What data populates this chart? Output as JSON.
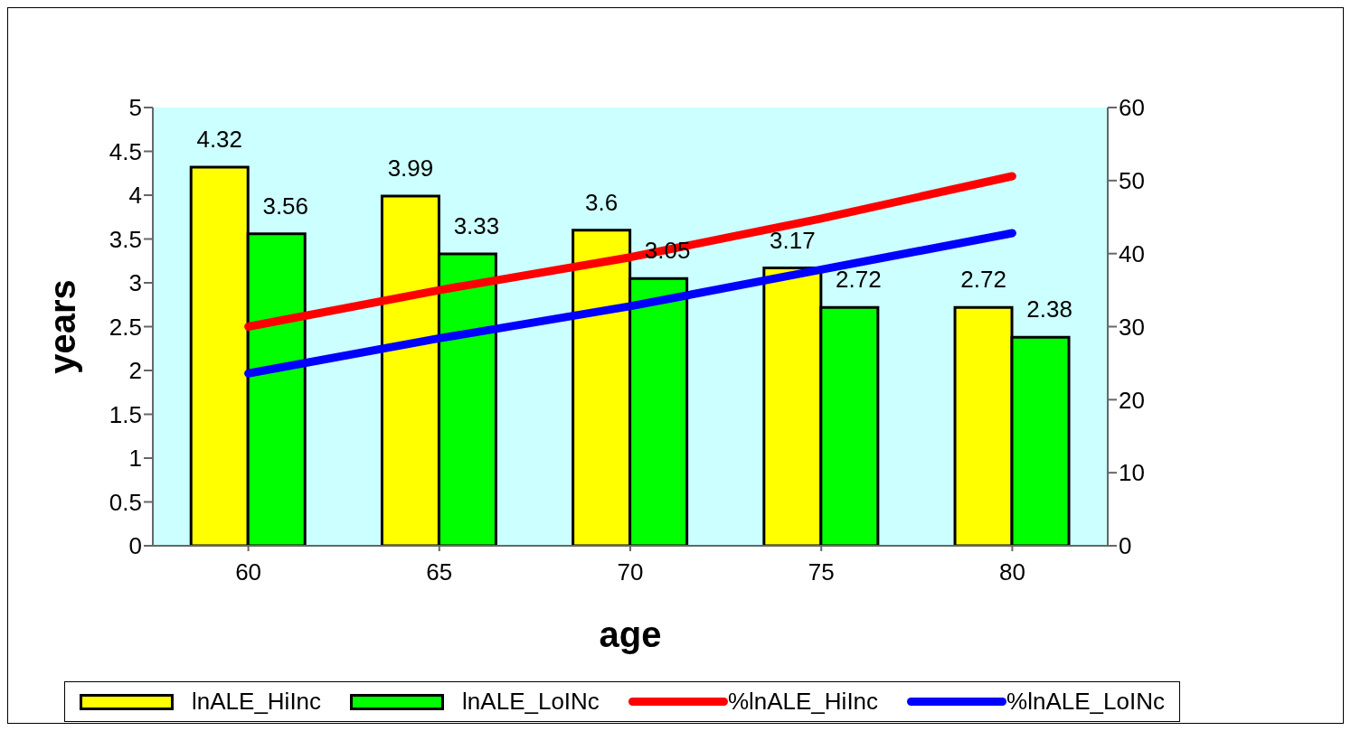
{
  "chart_data": {
    "type": "bar",
    "xlabel": "age",
    "ylabel": "years",
    "categories": [
      "60",
      "65",
      "70",
      "75",
      "80"
    ],
    "series": [
      {
        "name": "lnALE_HiInc",
        "color": "#ffff00",
        "values": [
          4.32,
          3.99,
          3.6,
          3.17,
          2.72
        ],
        "value_labels": [
          "4.32",
          "3.99",
          "3.6",
          "3.17",
          "2.72"
        ]
      },
      {
        "name": "lnALE_LoINc",
        "color": "#00ff00",
        "values": [
          3.56,
          3.33,
          3.05,
          2.72,
          2.38
        ],
        "value_labels": [
          "3.56",
          "3.33",
          "3.05",
          "2.72",
          "2.38"
        ]
      },
      {
        "name": "%lnALE_HiInc",
        "type": "line",
        "axis": "y2",
        "color": "#ff0000",
        "values": [
          30,
          35,
          39.5,
          44.8,
          50.6
        ]
      },
      {
        "name": "%lnALE_LoINc",
        "type": "line",
        "axis": "y2",
        "color": "#0000ff",
        "values": [
          23.6,
          28.4,
          32.8,
          37.8,
          42.8
        ]
      }
    ],
    "ylim": [
      0,
      5
    ],
    "yticks": [
      0,
      0.5,
      1,
      1.5,
      2,
      2.5,
      3,
      3.5,
      4,
      4.5,
      5
    ],
    "y2lim": [
      0,
      60
    ],
    "y2ticks": [
      0,
      10,
      20,
      30,
      40,
      50,
      60
    ],
    "grid": false,
    "legend": "bottom",
    "marker": "none",
    "line_style": "solid"
  }
}
